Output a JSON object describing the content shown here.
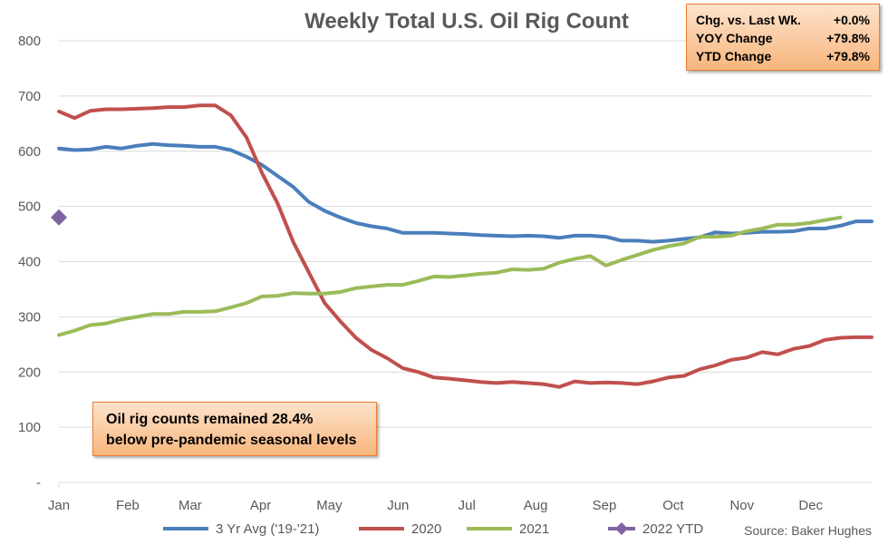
{
  "chart_data": {
    "type": "line",
    "title": "Weekly Total U.S. Oil Rig Count",
    "source": "Source: Baker Hughes",
    "ylim": [
      0,
      800
    ],
    "y_ticks": [
      {
        "value": 0,
        "label": "-"
      },
      {
        "value": 100,
        "label": "100"
      },
      {
        "value": 200,
        "label": "200"
      },
      {
        "value": 300,
        "label": "300"
      },
      {
        "value": 400,
        "label": "400"
      },
      {
        "value": 500,
        "label": "500"
      },
      {
        "value": 600,
        "label": "600"
      },
      {
        "value": 700,
        "label": "700"
      },
      {
        "value": 800,
        "label": "800"
      }
    ],
    "x_range_weeks": [
      1,
      53
    ],
    "x_ticks": [
      {
        "week": 1,
        "label": "Jan"
      },
      {
        "week": 5.4,
        "label": "Feb"
      },
      {
        "week": 9.4,
        "label": "Mar"
      },
      {
        "week": 13.9,
        "label": "Apr"
      },
      {
        "week": 18.3,
        "label": "May"
      },
      {
        "week": 22.7,
        "label": "Jun"
      },
      {
        "week": 27.1,
        "label": "Jul"
      },
      {
        "week": 31.5,
        "label": "Aug"
      },
      {
        "week": 35.9,
        "label": "Sep"
      },
      {
        "week": 40.3,
        "label": "Oct"
      },
      {
        "week": 44.7,
        "label": "Nov"
      },
      {
        "week": 49.1,
        "label": "Dec"
      }
    ],
    "grid": true,
    "legend_position": "bottom",
    "series": [
      {
        "name": "3 Yr Avg ('19-'21)",
        "color": "#4a7ebb",
        "kind": "line",
        "values": [
          605,
          602,
          603,
          608,
          605,
          610,
          613,
          611,
          610,
          608,
          608,
          602,
          590,
          575,
          555,
          535,
          508,
          492,
          480,
          470,
          464,
          460,
          452,
          452,
          452,
          451,
          450,
          448,
          447,
          446,
          447,
          446,
          443,
          447,
          447,
          445,
          438,
          438,
          436,
          438,
          441,
          444,
          453,
          451,
          452,
          454,
          454,
          455,
          460,
          460,
          465,
          473,
          473
        ]
      },
      {
        "name": "2020",
        "color": "#c0504d",
        "kind": "line",
        "values": [
          672,
          660,
          673,
          676,
          676,
          677,
          678,
          680,
          680,
          683,
          683,
          665,
          625,
          560,
          505,
          435,
          380,
          325,
          292,
          262,
          240,
          225,
          207,
          200,
          190,
          188,
          185,
          182,
          180,
          182,
          180,
          178,
          173,
          183,
          180,
          181,
          180,
          178,
          183,
          190,
          193,
          205,
          212,
          222,
          226,
          236,
          232,
          242,
          247,
          258,
          262,
          263,
          263
        ]
      },
      {
        "name": "2021",
        "color": "#9bbb59",
        "kind": "line",
        "values": [
          267,
          275,
          285,
          288,
          295,
          300,
          305,
          305,
          309,
          309,
          310,
          317,
          325,
          337,
          338,
          343,
          342,
          342,
          345,
          352,
          355,
          358,
          358,
          365,
          373,
          372,
          375,
          378,
          380,
          386,
          385,
          387,
          398,
          405,
          410,
          393,
          403,
          412,
          421,
          428,
          433,
          445,
          445,
          447,
          455,
          460,
          467,
          467,
          470,
          475,
          480
        ]
      },
      {
        "name": "2022 YTD",
        "color": "#8064a2",
        "kind": "marker",
        "values": [
          480
        ]
      }
    ]
  },
  "stats_box": {
    "rows": [
      {
        "label": "Chg. vs. Last Wk.",
        "value": "+0.0%"
      },
      {
        "label": "YOY Change",
        "value": "+79.8%"
      },
      {
        "label": "YTD Change",
        "value": "+79.8%"
      }
    ]
  },
  "annotation": {
    "line1": "Oil rig counts remained 28.4%",
    "line2": "below pre-pandemic seasonal levels"
  }
}
